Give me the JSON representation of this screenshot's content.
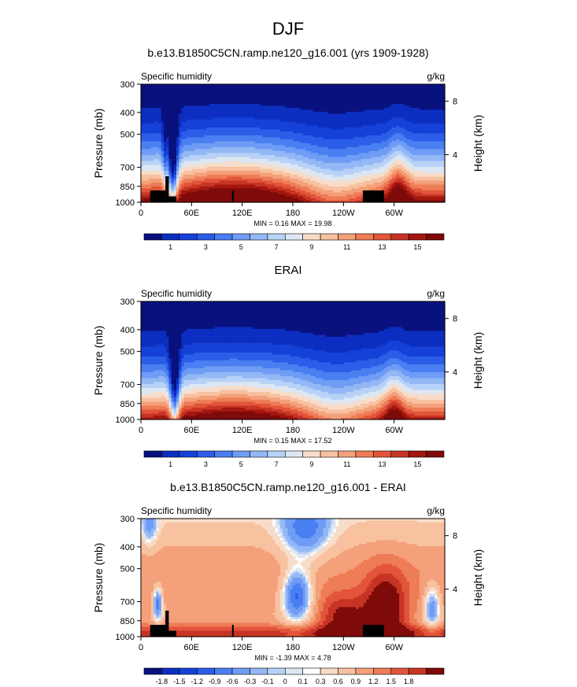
{
  "figure": {
    "title": "DJF"
  },
  "chart_data": [
    {
      "type": "heatmap",
      "title": "b.e13.B1850C5CN.ramp.ne120_g16.001 (yrs 1909-1928)",
      "left_label": "Specific humidity",
      "units_label": "g/kg",
      "ylabel": "Pressure (mb)",
      "ylabel_right": "Height (km)",
      "x_ticks": [
        "0",
        "60E",
        "120E",
        "180",
        "120W",
        "60W"
      ],
      "y_ticks": [
        "300",
        "400",
        "500",
        "700",
        "850",
        "1000"
      ],
      "right_ticks": [
        "8",
        "4"
      ],
      "stats": "MIN =  0.16  MAX =  19.98",
      "colorbar_labels": [
        "1",
        "3",
        "5",
        "7",
        "9",
        "11",
        "13",
        "15"
      ],
      "colorbar_colors": [
        "#08117e",
        "#0c2ec0",
        "#1541d8",
        "#2b5ee8",
        "#4a7ff2",
        "#6f9cf5",
        "#94b8f5",
        "#b8d2f7",
        "#dde7f3",
        "#f7ddc9",
        "#f8c1a0",
        "#f4a07a",
        "#ee7c56",
        "#e2553a",
        "#c83424",
        "#a3170f",
        "#7e0a0a"
      ],
      "field": "model"
    },
    {
      "type": "heatmap",
      "title": "ERAI",
      "left_label": "Specific humidity",
      "units_label": "g/kg",
      "ylabel": "Pressure (mb)",
      "ylabel_right": "Height (km)",
      "x_ticks": [
        "0",
        "60E",
        "120E",
        "180",
        "120W",
        "60W"
      ],
      "y_ticks": [
        "300",
        "400",
        "500",
        "700",
        "850",
        "1000"
      ],
      "right_ticks": [
        "8",
        "4"
      ],
      "stats": "MIN =  0.15  MAX =  17.52",
      "colorbar_labels": [
        "1",
        "3",
        "5",
        "7",
        "9",
        "11",
        "13",
        "15"
      ],
      "colorbar_colors": [
        "#08117e",
        "#0c2ec0",
        "#1541d8",
        "#2b5ee8",
        "#4a7ff2",
        "#6f9cf5",
        "#94b8f5",
        "#b8d2f7",
        "#dde7f3",
        "#f7ddc9",
        "#f8c1a0",
        "#f4a07a",
        "#ee7c56",
        "#e2553a",
        "#c83424",
        "#a3170f",
        "#7e0a0a"
      ],
      "field": "obs"
    },
    {
      "type": "heatmap",
      "title": "b.e13.B1850C5CN.ramp.ne120_g16.001 - ERAI",
      "left_label": "Specific humidity",
      "units_label": "g/kg",
      "ylabel": "Pressure (mb)",
      "ylabel_right": "Height (km)",
      "x_ticks": [
        "0",
        "60E",
        "120E",
        "180",
        "120W",
        "60W"
      ],
      "y_ticks": [
        "300",
        "400",
        "500",
        "700",
        "850",
        "1000"
      ],
      "right_ticks": [
        "8",
        "4"
      ],
      "stats": "MIN = -1.39  MAX =  4.78",
      "colorbar_labels": [
        "-1.8",
        "-1.5",
        "-1.2",
        "-0.9",
        "-0.6",
        "-0.3",
        "-0.1",
        "0",
        "0.1",
        "0.3",
        "0.6",
        "0.9",
        "1.2",
        "1.5",
        "1.8"
      ],
      "colorbar_colors": [
        "#08117e",
        "#0c2ec0",
        "#1541d8",
        "#2b5ee8",
        "#4a7ff2",
        "#6f9cf5",
        "#94b8f5",
        "#b8d2f7",
        "#dde7f3",
        "#ffffff",
        "#f7ddc9",
        "#f8c1a0",
        "#f4a07a",
        "#ee7c56",
        "#e2553a",
        "#c83424",
        "#7e0a0a"
      ],
      "field": "diff"
    }
  ]
}
